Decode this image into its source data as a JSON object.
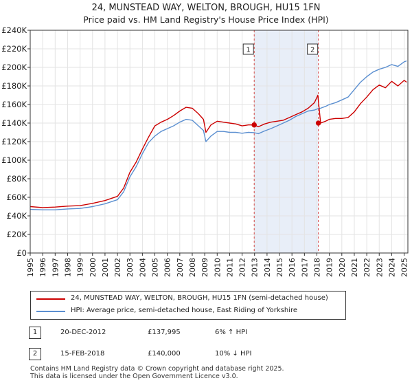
{
  "title": {
    "line1": "24, MUNSTEAD WAY, WELTON, BROUGH, HU15 1FN",
    "line2": "Price paid vs. HM Land Registry's House Price Index (HPI)"
  },
  "colors": {
    "property": "#cc0000",
    "hpi": "#5b8fd0",
    "span": "#e8eef8"
  },
  "chart_data": {
    "type": "line",
    "xlabel": "",
    "ylabel": "",
    "xlim": [
      1995,
      2025.3
    ],
    "ylim": [
      0,
      240000
    ],
    "y_ticks": [
      0,
      20000,
      40000,
      60000,
      80000,
      100000,
      120000,
      140000,
      160000,
      180000,
      200000,
      220000,
      240000
    ],
    "y_tick_labels": [
      "£0",
      "£20K",
      "£40K",
      "£60K",
      "£80K",
      "£100K",
      "£120K",
      "£140K",
      "£160K",
      "£180K",
      "£200K",
      "£220K",
      "£240K"
    ],
    "x_tick_labels": [
      "1995",
      "1996",
      "1997",
      "1998",
      "1999",
      "2000",
      "2001",
      "2002",
      "2003",
      "2004",
      "2005",
      "2006",
      "2007",
      "2008",
      "2009",
      "2010",
      "2011",
      "2012",
      "2013",
      "2014",
      "2015",
      "2016",
      "2017",
      "2018",
      "2019",
      "2020",
      "2021",
      "2022",
      "2023",
      "2024",
      "2025"
    ],
    "series": [
      {
        "name": "24, MUNSTEAD WAY, WELTON, BROUGH, HU15 1FN (semi-detached house)",
        "x": [
          1995,
          1996,
          1997,
          1998,
          1999,
          2000,
          2001,
          2002,
          2002.5,
          2003,
          2003.5,
          2004,
          2004.5,
          2005,
          2005.5,
          2006,
          2006.5,
          2007,
          2007.5,
          2008,
          2008.5,
          2008.9,
          2009.1,
          2009.5,
          2010,
          2010.5,
          2011,
          2011.5,
          2012,
          2012.5,
          2012.97,
          2013.3,
          2013.8,
          2014.3,
          2014.8,
          2015.3,
          2015.8,
          2016.3,
          2016.8,
          2017.3,
          2017.8,
          2018.08,
          2018.3,
          2018.7,
          2019,
          2019.5,
          2020,
          2020.5,
          2021,
          2021.5,
          2022,
          2022.5,
          2023,
          2023.5,
          2024,
          2024.5,
          2025,
          2025.2
        ],
        "values": [
          50000,
          49000,
          49500,
          50500,
          51000,
          53500,
          56500,
          61000,
          70000,
          87000,
          98000,
          112000,
          125000,
          137000,
          141000,
          144000,
          148000,
          153000,
          157000,
          156000,
          150000,
          144000,
          130000,
          138000,
          142000,
          141000,
          140000,
          139000,
          137000,
          138000,
          137995,
          136000,
          139000,
          141000,
          142000,
          143000,
          146000,
          149000,
          152000,
          156000,
          162000,
          170000,
          140000,
          142000,
          144000,
          145000,
          145000,
          146000,
          152000,
          161000,
          168000,
          176000,
          181000,
          178000,
          185000,
          180000,
          186000,
          184000
        ]
      },
      {
        "name": "HPI: Average price, semi-detached house, East Riding of Yorkshire",
        "x": [
          1995,
          1996,
          1997,
          1998,
          1999,
          2000,
          2001,
          2002,
          2002.5,
          2003,
          2003.5,
          2004,
          2004.5,
          2005,
          2005.5,
          2006,
          2006.5,
          2007,
          2007.5,
          2008,
          2008.5,
          2008.9,
          2009.1,
          2009.5,
          2010,
          2010.5,
          2011,
          2011.5,
          2012,
          2012.5,
          2012.97,
          2013.3,
          2013.8,
          2014.3,
          2014.8,
          2015.3,
          2015.8,
          2016.3,
          2016.8,
          2017.3,
          2017.8,
          2018.08,
          2018.3,
          2018.7,
          2019,
          2019.5,
          2020,
          2020.5,
          2021,
          2021.5,
          2022,
          2022.5,
          2023,
          2023.5,
          2024,
          2024.5,
          2025,
          2025.2
        ],
        "values": [
          47000,
          46500,
          46500,
          47500,
          48000,
          50000,
          53000,
          57500,
          66000,
          82000,
          93000,
          107000,
          119000,
          126000,
          131000,
          134000,
          137000,
          141000,
          144000,
          143000,
          137000,
          132000,
          120000,
          126000,
          131000,
          131000,
          130000,
          130000,
          129000,
          130000,
          129600,
          128500,
          131500,
          134000,
          137000,
          140000,
          143000,
          147000,
          150000,
          153000,
          154000,
          155500,
          156000,
          158000,
          160000,
          162000,
          165000,
          168000,
          176000,
          184000,
          190000,
          195000,
          198000,
          200000,
          203000,
          201000,
          206000,
          207000
        ]
      }
    ],
    "annotations": [
      {
        "label": "1",
        "x": 2012.97,
        "value": 137995
      },
      {
        "label": "2",
        "x": 2018.12,
        "value": 140000
      }
    ]
  },
  "legend": {
    "property": "24, MUNSTEAD WAY, WELTON, BROUGH, HU15 1FN (semi-detached house)",
    "hpi": "HPI: Average price, semi-detached house, East Riding of Yorkshire"
  },
  "transactions": [
    {
      "num": "1",
      "date": "20-DEC-2012",
      "price": "£137,995",
      "hpi": "6% ↑ HPI"
    },
    {
      "num": "2",
      "date": "15-FEB-2018",
      "price": "£140,000",
      "hpi": "10% ↓ HPI"
    }
  ],
  "footer": {
    "line1": "Contains HM Land Registry data © Crown copyright and database right 2025.",
    "line2": "This data is licensed under the Open Government Licence v3.0."
  }
}
